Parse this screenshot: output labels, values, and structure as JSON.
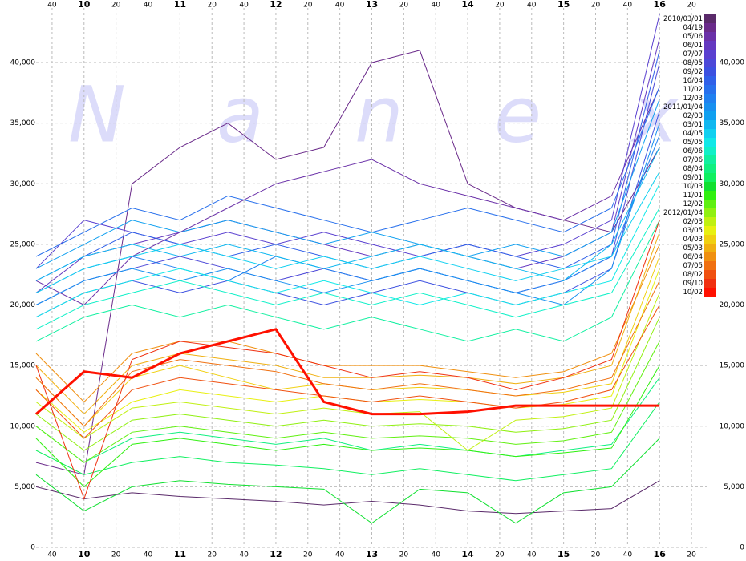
{
  "chart_data": {
    "type": "line",
    "watermark": "Nanex",
    "x": [
      570,
      600,
      630,
      660,
      690,
      720,
      750,
      780,
      810,
      840,
      870,
      900,
      930,
      960
    ],
    "xlim": [
      570,
      990
    ],
    "xticks": [
      {
        "value": 580,
        "label": "40"
      },
      {
        "value": 600,
        "label": "10"
      },
      {
        "value": 620,
        "label": "20"
      },
      {
        "value": 640,
        "label": "40"
      },
      {
        "value": 660,
        "label": "11"
      },
      {
        "value": 680,
        "label": "20"
      },
      {
        "value": 700,
        "label": "40"
      },
      {
        "value": 720,
        "label": "12"
      },
      {
        "value": 740,
        "label": "20"
      },
      {
        "value": 760,
        "label": "40"
      },
      {
        "value": 780,
        "label": "13"
      },
      {
        "value": 800,
        "label": "20"
      },
      {
        "value": 820,
        "label": "40"
      },
      {
        "value": 840,
        "label": "14"
      },
      {
        "value": 860,
        "label": "20"
      },
      {
        "value": 880,
        "label": "40"
      },
      {
        "value": 900,
        "label": "15"
      },
      {
        "value": 920,
        "label": "20"
      },
      {
        "value": 940,
        "label": "40"
      },
      {
        "value": 960,
        "label": "16"
      },
      {
        "value": 980,
        "label": "20"
      }
    ],
    "ylim": [
      0,
      44500
    ],
    "yticks": [
      0,
      {
        "value": 5000,
        "label": "5,000"
      },
      {
        "value": 10000,
        "label": "10,000"
      },
      {
        "value": 15000,
        "label": "15,000"
      },
      {
        "value": 20000,
        "label": "20,000"
      },
      {
        "value": 25000,
        "label": "25,000"
      },
      {
        "value": 30000,
        "label": "30,000"
      },
      {
        "value": 35000,
        "label": "35,000"
      },
      {
        "value": 40000,
        "label": "40,000"
      }
    ],
    "grid": true,
    "series": [
      {
        "name": "2010/03/01",
        "color": "#5a2a6a",
        "values": [
          5000,
          4000,
          4500,
          4200,
          4000,
          3800,
          3500,
          3800,
          3500,
          3000,
          2800,
          3000,
          3200,
          5500
        ]
      },
      {
        "name": "04/19",
        "color": "#6a2a8a",
        "values": [
          7000,
          6000,
          30000,
          33000,
          35000,
          32000,
          33000,
          40000,
          41000,
          30000,
          28000,
          27000,
          26000,
          33000
        ]
      },
      {
        "name": "05/06",
        "color": "#6a30a8",
        "values": [
          22000,
          20000,
          24000,
          26000,
          28000,
          30000,
          31000,
          32000,
          30000,
          29000,
          28000,
          27000,
          29000,
          38000
        ]
      },
      {
        "name": "06/01",
        "color": "#6438c0",
        "values": [
          21000,
          24000,
          25000,
          26000,
          27000,
          26000,
          25000,
          24000,
          25000,
          24000,
          23000,
          24000,
          26000,
          42000
        ]
      },
      {
        "name": "07/07",
        "color": "#5a40d0",
        "values": [
          23000,
          27000,
          26000,
          25000,
          26000,
          25000,
          26000,
          25000,
          24000,
          25000,
          24000,
          25000,
          27000,
          44000
        ]
      },
      {
        "name": "08/05",
        "color": "#4c48d8",
        "values": [
          20000,
          22000,
          23000,
          24000,
          23000,
          22000,
          23000,
          22000,
          23000,
          22000,
          21000,
          22000,
          24000,
          40000
        ]
      },
      {
        "name": "09/02",
        "color": "#3c50e0",
        "values": [
          19000,
          21000,
          22000,
          21000,
          22000,
          21000,
          20000,
          21000,
          22000,
          21000,
          20000,
          21000,
          23000,
          36000
        ]
      },
      {
        "name": "10/04",
        "color": "#3060e8",
        "values": [
          22000,
          24000,
          26000,
          25000,
          24000,
          25000,
          24000,
          23000,
          24000,
          25000,
          24000,
          23000,
          25000,
          41000
        ]
      },
      {
        "name": "11/02",
        "color": "#2870ec",
        "values": [
          24000,
          26000,
          28000,
          27000,
          29000,
          28000,
          27000,
          26000,
          27000,
          28000,
          27000,
          26000,
          28000,
          38000
        ]
      },
      {
        "name": "12/03",
        "color": "#2080f0",
        "values": [
          21000,
          23000,
          24000,
          23000,
          22000,
          24000,
          23000,
          22000,
          23000,
          22000,
          21000,
          22000,
          24000,
          34000
        ]
      },
      {
        "name": "2011/01/04",
        "color": "#1890f0",
        "values": [
          20000,
          22000,
          23000,
          22000,
          23000,
          22000,
          21000,
          22000,
          23000,
          22000,
          21000,
          20000,
          23000,
          35000
        ]
      },
      {
        "name": "02/03",
        "color": "#10a0f0",
        "values": [
          23000,
          25000,
          27000,
          26000,
          27000,
          26000,
          25000,
          26000,
          25000,
          24000,
          25000,
          24000,
          26000,
          37000
        ]
      },
      {
        "name": "03/01",
        "color": "#10b8f0",
        "values": [
          22000,
          24000,
          25000,
          24000,
          25000,
          24000,
          23000,
          24000,
          25000,
          24000,
          23000,
          22000,
          25000,
          33000
        ]
      },
      {
        "name": "04/05",
        "color": "#10d0f0",
        "values": [
          21000,
          23000,
          24000,
          25000,
          24000,
          23000,
          24000,
          23000,
          24000,
          23000,
          22000,
          23000,
          24000,
          31000
        ]
      },
      {
        "name": "05/05",
        "color": "#10e8e8",
        "values": [
          19000,
          21000,
          22000,
          23000,
          22000,
          21000,
          22000,
          21000,
          20000,
          21000,
          20000,
          21000,
          22000,
          30000
        ]
      },
      {
        "name": "06/06",
        "color": "#10f0c8",
        "values": [
          18000,
          20000,
          21000,
          22000,
          21000,
          20000,
          21000,
          20000,
          21000,
          20000,
          19000,
          20000,
          21000,
          28000
        ]
      },
      {
        "name": "07/06",
        "color": "#10f0a0",
        "values": [
          17000,
          19000,
          20000,
          19000,
          20000,
          19000,
          18000,
          19000,
          18000,
          17000,
          18000,
          17000,
          19000,
          27000
        ]
      },
      {
        "name": "08/04",
        "color": "#10f080",
        "values": [
          10000,
          7000,
          9000,
          9500,
          9000,
          8500,
          9000,
          8000,
          8500,
          8000,
          7500,
          8000,
          8500,
          14000
        ]
      },
      {
        "name": "09/01",
        "color": "#10f060",
        "values": [
          8000,
          6000,
          7000,
          7500,
          7000,
          6800,
          6500,
          6000,
          6500,
          6000,
          5500,
          6000,
          6500,
          12000
        ]
      },
      {
        "name": "10/03",
        "color": "#10e030",
        "values": [
          6000,
          3000,
          5000,
          5500,
          5200,
          5000,
          4800,
          2000,
          4800,
          4500,
          2000,
          4500,
          5000,
          9000
        ]
      },
      {
        "name": "11/01",
        "color": "#30f010",
        "values": [
          9000,
          5000,
          8500,
          9000,
          8500,
          8000,
          8500,
          8000,
          8200,
          8000,
          7500,
          7800,
          8200,
          15000
        ]
      },
      {
        "name": "12/02",
        "color": "#60f010",
        "values": [
          10000,
          7000,
          9500,
          10000,
          9500,
          9000,
          9500,
          9000,
          9200,
          9000,
          8500,
          8800,
          9500,
          17000
        ]
      },
      {
        "name": "2012/01/04",
        "color": "#90f010",
        "values": [
          11000,
          8000,
          10500,
          11000,
          10500,
          10000,
          10500,
          10000,
          10200,
          10000,
          9500,
          9800,
          10500,
          19000
        ]
      },
      {
        "name": "02/03",
        "color": "#c0f010",
        "values": [
          12000,
          9000,
          11500,
          12000,
          11500,
          11000,
          11500,
          11000,
          11200,
          8000,
          10500,
          10800,
          11500,
          21000
        ]
      },
      {
        "name": "03/05",
        "color": "#e8f010",
        "values": [
          13000,
          9500,
          12000,
          13000,
          12500,
          12000,
          12500,
          12000,
          12200,
          12000,
          11500,
          11800,
          12500,
          23000
        ]
      },
      {
        "name": "04/03",
        "color": "#f0d010",
        "values": [
          14000,
          10000,
          14000,
          15000,
          14000,
          13000,
          13500,
          13000,
          13200,
          13000,
          12500,
          12800,
          13500,
          24000
        ]
      },
      {
        "name": "05/03",
        "color": "#f0b010",
        "values": [
          15000,
          11000,
          15000,
          16000,
          15500,
          15000,
          14000,
          14000,
          14200,
          14000,
          13500,
          14000,
          15000,
          26000
        ]
      },
      {
        "name": "06/04",
        "color": "#f09010",
        "values": [
          16000,
          12000,
          16000,
          17000,
          17000,
          16000,
          15000,
          15000,
          15000,
          14500,
          14000,
          14500,
          16000,
          25000
        ]
      },
      {
        "name": "07/05",
        "color": "#f07010",
        "values": [
          14000,
          10000,
          14500,
          15500,
          15000,
          14500,
          13500,
          13000,
          13500,
          13000,
          12500,
          13000,
          14000,
          22000
        ]
      },
      {
        "name": "08/02",
        "color": "#f05010",
        "values": [
          13000,
          9000,
          13000,
          14000,
          13500,
          13000,
          12500,
          12000,
          12500,
          12000,
          11500,
          12000,
          13000,
          20000
        ]
      },
      {
        "name": "09/10",
        "color": "#f03010",
        "values": [
          15000,
          4000,
          15500,
          17000,
          16500,
          16000,
          15000,
          14000,
          14500,
          14000,
          13000,
          14000,
          15500,
          27000
        ]
      },
      {
        "name": "10/02",
        "color": "#ff1000",
        "values": [
          11000,
          14500,
          14000,
          16000,
          17000,
          18000,
          12000,
          11000,
          11000,
          11200,
          11700,
          11700,
          11700,
          11700
        ]
      }
    ]
  }
}
